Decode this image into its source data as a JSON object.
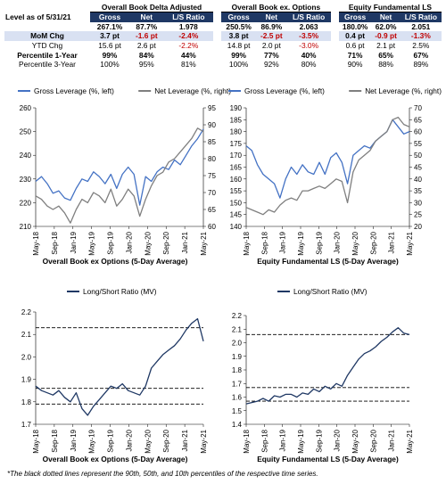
{
  "table": {
    "groups": [
      "Overall Book Delta Adjusted",
      "Overall Book ex. Options",
      "Equity Fundamental LS"
    ],
    "columns": [
      "Gross",
      "Net",
      "L/S Ratio"
    ],
    "rows": [
      {
        "label": "Level as of 5/31/21",
        "cells": [
          "267.1%",
          "87.7%",
          "1.978",
          "250.5%",
          "86.9%",
          "2.063",
          "180.0%",
          "62.0%",
          "2.051"
        ]
      },
      {
        "label": "MoM Chg",
        "cells": [
          "3.7 pt",
          "-1.6 pt",
          "-2.4%",
          "3.8 pt",
          "-2.5 pt",
          "-3.5%",
          "0.4 pt",
          "-0.9 pt",
          "-1.3%"
        ]
      },
      {
        "label": "YTD Chg",
        "cells": [
          "15.6 pt",
          "2.6 pt",
          "-2.2%",
          "14.8 pt",
          "2.0 pt",
          "-3.0%",
          "0.6 pt",
          "2.1 pt",
          "2.5%"
        ]
      },
      {
        "label": "Percentile 1-Year",
        "cells": [
          "99%",
          "84%",
          "44%",
          "99%",
          "77%",
          "40%",
          "71%",
          "65%",
          "67%"
        ]
      },
      {
        "label": "Percentile 3-Year",
        "cells": [
          "100%",
          "95%",
          "81%",
          "100%",
          "92%",
          "80%",
          "90%",
          "88%",
          "89%"
        ]
      }
    ],
    "negative_color": "#c00000",
    "header_color": "#1f3864",
    "highlight_row_color": "#d9e1f2"
  },
  "chart_data": [
    {
      "type": "line",
      "title": "Overall Book ex Options (5-Day Average)",
      "x_ticks": [
        "May-18",
        "Sep-18",
        "Jan-19",
        "May-19",
        "Sep-19",
        "Jan-20",
        "May-20",
        "Sep-20",
        "Jan-21",
        "May-21"
      ],
      "ylim": [
        210,
        260
      ],
      "y_ticks": [
        210,
        220,
        230,
        240,
        250,
        260
      ],
      "y2lim": [
        60,
        95
      ],
      "y2_ticks": [
        60,
        65,
        70,
        75,
        80,
        85,
        90,
        95
      ],
      "legend_position": "top",
      "series": [
        {
          "name": "Gross Leverage (%, left)",
          "axis": "left",
          "color": "#4472c4",
          "values": [
            229,
            231,
            228,
            224,
            225,
            222,
            221,
            226,
            230,
            229,
            233,
            231,
            228,
            232,
            226,
            232,
            235,
            232,
            219,
            231,
            229,
            233,
            235,
            234,
            238,
            236,
            240,
            244,
            247,
            251
          ]
        },
        {
          "name": "Net Leverage (%, right)",
          "axis": "right",
          "color": "#7f7f7f",
          "values": [
            69,
            68,
            66,
            65,
            66,
            64,
            61,
            65,
            68,
            67,
            70,
            69,
            67,
            71,
            66,
            68,
            71,
            69,
            63,
            68,
            72,
            75,
            76,
            79,
            80,
            82,
            84,
            86,
            89,
            88
          ]
        }
      ]
    },
    {
      "type": "line",
      "title": "Equity Fundamental LS (5-Day Average)",
      "x_ticks": [
        "May-18",
        "Sep-18",
        "Jan-19",
        "May-19",
        "Sep-19",
        "Jan-20",
        "May-20",
        "Sep-20",
        "Jan-21",
        "May-21"
      ],
      "ylim": [
        140,
        190
      ],
      "y_ticks": [
        140,
        145,
        150,
        155,
        160,
        165,
        170,
        175,
        180,
        185,
        190
      ],
      "y2lim": [
        20,
        70
      ],
      "y2_ticks": [
        20,
        25,
        30,
        35,
        40,
        45,
        50,
        55,
        60,
        65,
        70
      ],
      "legend_position": "top",
      "series": [
        {
          "name": "Gross Leverage (%, left)",
          "axis": "left",
          "color": "#4472c4",
          "values": [
            174,
            172,
            166,
            162,
            160,
            158,
            152,
            160,
            165,
            162,
            166,
            163,
            162,
            167,
            162,
            169,
            171,
            167,
            158,
            170,
            172,
            174,
            173,
            176,
            178,
            180,
            185,
            182,
            179,
            180
          ]
        },
        {
          "name": "Net Leverage (%, right)",
          "axis": "right",
          "color": "#7f7f7f",
          "values": [
            28,
            27,
            26,
            25,
            27,
            26,
            29,
            31,
            32,
            31,
            35,
            35,
            36,
            37,
            36,
            38,
            40,
            39,
            30,
            43,
            48,
            50,
            52,
            56,
            58,
            60,
            65,
            66,
            63,
            62
          ]
        }
      ]
    },
    {
      "type": "line",
      "title": "Overall Book ex Options (5-Day Average)",
      "x_ticks": [
        "May-18",
        "Sep-18",
        "Jan-19",
        "May-19",
        "Sep-19",
        "Jan-20",
        "May-20",
        "Sep-20",
        "Jan-21",
        "May-21"
      ],
      "ylim": [
        1.7,
        2.2
      ],
      "y_ticks": [
        1.7,
        1.8,
        1.9,
        2.0,
        2.1,
        2.2
      ],
      "legend_position": "top",
      "percentile_lines": [
        2.13,
        1.86,
        1.79
      ],
      "series": [
        {
          "name": "Long/Short Ratio (MV)",
          "axis": "left",
          "color": "#1f3864",
          "values": [
            1.87,
            1.85,
            1.84,
            1.83,
            1.85,
            1.82,
            1.8,
            1.84,
            1.77,
            1.74,
            1.78,
            1.81,
            1.84,
            1.87,
            1.86,
            1.88,
            1.85,
            1.84,
            1.83,
            1.87,
            1.95,
            1.98,
            2.01,
            2.03,
            2.05,
            2.08,
            2.12,
            2.15,
            2.17,
            2.07
          ]
        }
      ]
    },
    {
      "type": "line",
      "title": "Equity Fundamental LS (5-Day Average)",
      "x_ticks": [
        "May-18",
        "Sep-18",
        "Jan-19",
        "May-19",
        "Sep-19",
        "Jan-20",
        "May-20",
        "Sep-20",
        "Jan-21",
        "May-21"
      ],
      "ylim": [
        1.4,
        2.2
      ],
      "y_ticks": [
        1.4,
        1.5,
        1.6,
        1.7,
        1.8,
        1.9,
        2.0,
        2.1,
        2.2
      ],
      "legend_position": "top",
      "percentile_lines": [
        2.06,
        1.67,
        1.57
      ],
      "series": [
        {
          "name": "Long/Short Ratio (MV)",
          "axis": "left",
          "color": "#1f3864",
          "values": [
            1.55,
            1.56,
            1.57,
            1.59,
            1.57,
            1.61,
            1.6,
            1.62,
            1.62,
            1.6,
            1.63,
            1.62,
            1.66,
            1.64,
            1.68,
            1.66,
            1.7,
            1.68,
            1.76,
            1.82,
            1.88,
            1.92,
            1.94,
            1.97,
            2.01,
            2.04,
            2.08,
            2.11,
            2.07,
            2.06
          ]
        }
      ]
    }
  ],
  "footnote": "*The black dotted lines represent the 90th, 50th, and 10th percentiles of the respective time series."
}
